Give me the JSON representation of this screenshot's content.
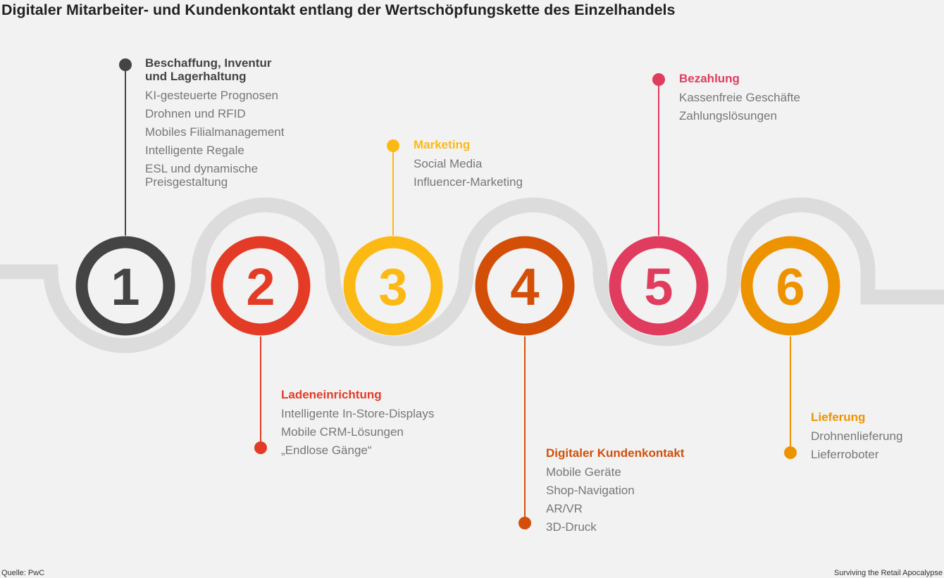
{
  "title": "Digitaler Mitarbeiter- und Kundenkontakt entlang der Wertschöpfungskette des Einzelhandels",
  "colors": {
    "background": "#f2f2f2",
    "road": "#dcdcdc",
    "text_gray": "#777777"
  },
  "steps": [
    {
      "number": "1",
      "color": "#444444",
      "heading_color": "#444444",
      "heading_lines": [
        "Beschaffung, Inventur",
        "und Lagerhaltung"
      ],
      "items": [
        "KI-gesteuerte Prognosen",
        "Drohnen und RFID",
        "Mobiles Filialmanagement",
        "Intelligente Regale",
        "ESL und dynamische\nPreisgestaltung"
      ]
    },
    {
      "number": "2",
      "color": "#e33b26",
      "heading_color": "#e33b26",
      "heading_lines": [
        "Ladeneinrichtung"
      ],
      "items": [
        "Intelligente In-Store-Displays",
        "Mobile CRM-Lösungen",
        "„Endlose Gänge“"
      ]
    },
    {
      "number": "3",
      "color": "#fdb913",
      "heading_color": "#fdb913",
      "heading_lines": [
        "Marketing"
      ],
      "items": [
        "Social Media",
        "Influencer-Marketing"
      ]
    },
    {
      "number": "4",
      "color": "#d34f08",
      "heading_color": "#d34f08",
      "heading_lines": [
        "Digitaler Kundenkontakt"
      ],
      "items": [
        "Mobile Geräte",
        "Shop-Navigation",
        "AR/VR",
        "3D-Druck"
      ]
    },
    {
      "number": "5",
      "color": "#e03c5e",
      "heading_color": "#e03c5e",
      "heading_lines": [
        "Bezahlung"
      ],
      "items": [
        "Kassenfreie Geschäfte",
        "Zahlungslösungen"
      ]
    },
    {
      "number": "6",
      "color": "#ee9300",
      "heading_color": "#ee9300",
      "heading_lines": [
        "Lieferung"
      ],
      "items": [
        "Drohnenlieferung",
        "Lieferroboter"
      ]
    }
  ],
  "footer": {
    "source": "Quelle: PwC",
    "credit": "Surviving the Retail Apocalypse"
  }
}
